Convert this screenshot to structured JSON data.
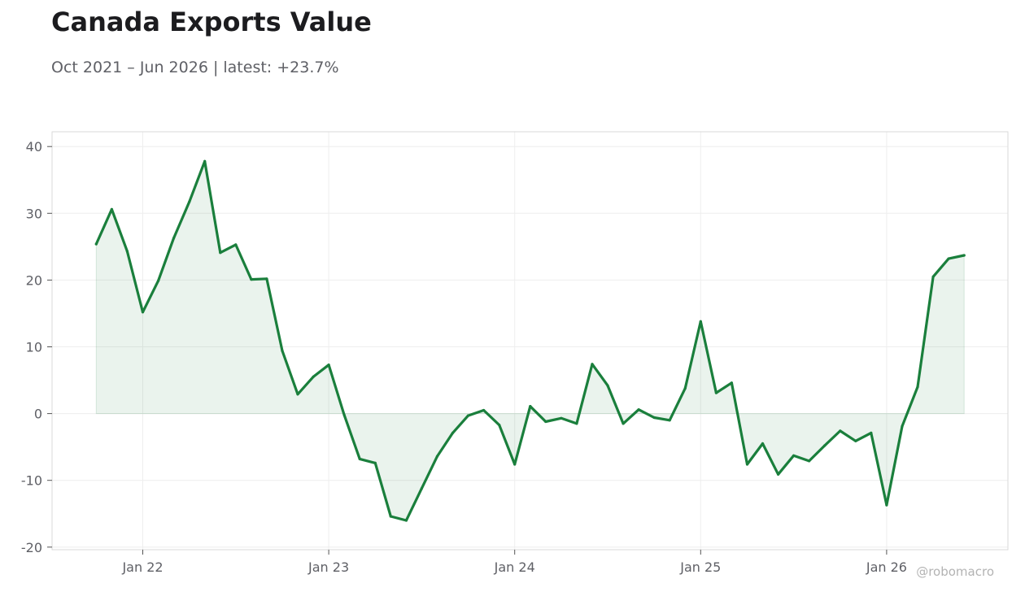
{
  "title": "Canada Exports Value",
  "subtitle": "Oct 2021 – Jun 2026 | latest: +23.7%",
  "watermark": "@robomacro",
  "colors": {
    "line": "#1a7f3c",
    "fill": "#1a7f3c",
    "grid": "#eeeeee",
    "axis": "#d9d9d9",
    "text": "#5f6066"
  },
  "chart_data": {
    "type": "area",
    "title": "Canada Exports Value",
    "subtitle": "Oct 2021 – Jun 2026 | latest: +23.7%",
    "xlabel": "",
    "ylabel": "",
    "ylim": [
      -20,
      40
    ],
    "xlim": [
      "2021-08",
      "2026-09"
    ],
    "grid": true,
    "yticks": [
      -20,
      -10,
      0,
      10,
      20,
      30,
      40
    ],
    "yticklabels": [
      "-20",
      "-10",
      "0",
      "10",
      "20",
      "30",
      "40"
    ],
    "xticks": [
      "2022-01",
      "2023-01",
      "2024-01",
      "2025-01",
      "2026-01"
    ],
    "xticklabels": [
      "Jan 22",
      "Jan 23",
      "Jan 24",
      "Jan 25",
      "Jan 26"
    ],
    "series": [
      {
        "x": [
          "2021-10",
          "2021-11",
          "2021-12",
          "2022-01",
          "2022-02",
          "2022-03",
          "2022-04",
          "2022-05",
          "2022-06",
          "2022-07",
          "2022-08",
          "2022-09",
          "2022-10",
          "2022-11",
          "2022-12",
          "2023-01",
          "2023-02",
          "2023-03",
          "2023-04",
          "2023-05",
          "2023-06",
          "2023-07",
          "2023-08",
          "2023-09",
          "2023-10",
          "2023-11",
          "2023-12",
          "2024-01",
          "2024-02",
          "2024-03",
          "2024-04",
          "2024-05",
          "2024-06",
          "2024-07",
          "2024-08",
          "2024-09",
          "2024-10",
          "2024-11",
          "2024-12",
          "2025-01",
          "2025-02",
          "2025-03",
          "2025-04",
          "2025-05",
          "2025-06",
          "2025-07",
          "2025-08",
          "2025-09",
          "2025-10",
          "2025-11",
          "2025-12",
          "2026-01",
          "2026-02",
          "2026-03",
          "2026-04",
          "2026-05",
          "2026-06"
        ],
        "values": [
          25.4,
          30.6,
          24.3,
          15.2,
          19.9,
          26.3,
          31.7,
          37.8,
          24.1,
          25.3,
          20.1,
          20.2,
          9.4,
          2.9,
          5.5,
          7.3,
          -0.2,
          -6.8,
          -7.4,
          -15.4,
          -16.0,
          -11.2,
          -6.4,
          -2.9,
          -0.3,
          0.5,
          -1.7,
          -7.6,
          1.1,
          -1.2,
          -0.7,
          -1.5,
          7.4,
          4.2,
          -1.5,
          0.6,
          -0.6,
          -1.0,
          3.8,
          13.8,
          3.1,
          4.6,
          -7.6,
          -4.5,
          -9.1,
          -6.3,
          -7.1,
          -4.8,
          -2.6,
          -4.1,
          -2.9,
          -13.7,
          -1.9,
          4.0,
          20.5,
          23.2,
          23.7
        ]
      }
    ]
  }
}
